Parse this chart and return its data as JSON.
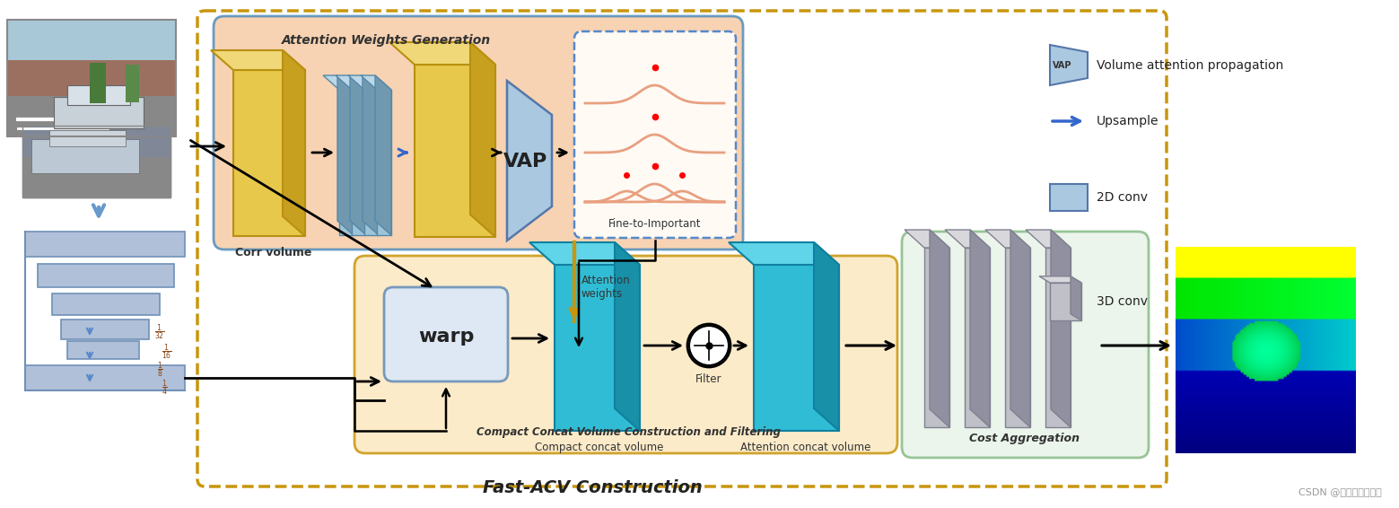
{
  "bg_color": "#ffffff",
  "title": "Fast-ACV Construction",
  "csdn_label": "CSDN @华科附小第一名",
  "legend_vap_label": "Volume attention propagation",
  "legend_upsample_label": "Upsample",
  "legend_2dconv_label": "2D conv",
  "legend_3dconv_label": "3D conv",
  "corr_volume_label": "Corr volume",
  "fine_to_important_label": "Fine-to-Important",
  "compact_concat_label": "Compact concat volume",
  "attention_concat_label": "Attention concat volume",
  "compact_filtering_label": "Compact Concat Volume Construction and Filtering",
  "warp_label": "warp",
  "filter_label": "Filter",
  "attention_weights_label": "Attention\nweights",
  "vap_label": "VAP",
  "cost_agg_label": "Cost Aggregation",
  "attn_gen_label": "Attention Weights Generation",
  "yellow_face": "#e8c84a",
  "yellow_top": "#f0d878",
  "yellow_side": "#c8a020",
  "yellow_edge": "#b89010",
  "cyan_face": "#30bcd4",
  "cyan_top": "#60d4e8",
  "cyan_side": "#1890a8",
  "cyan_edge": "#1080a0",
  "blue_slab_face": "#9fc4d8",
  "blue_slab_top": "#bcd8e8",
  "blue_slab_side": "#7099b0",
  "blue_slab_edge": "#5588aa",
  "gray_slab_face": "#c0c0c8",
  "gray_slab_top": "#d8d8dc",
  "gray_slab_side": "#9090a0",
  "gray_slab_edge": "#808090",
  "vap_face": "#aac8e0",
  "vap_edge": "#5577aa",
  "pyramid_color": "#b0c0d8",
  "pyramid_edge": "#7090b8",
  "outer_box_color": "#c8960c",
  "attn_box_color": "#f5c9a0",
  "attn_box_edge": "#4488bb",
  "compact_box_color": "#fce8c0",
  "compact_box_edge": "#c8960c",
  "cost_box_color": "#e8f4e8",
  "cost_box_edge": "#88bb88",
  "warp_face": "#dde8f4",
  "warp_edge": "#7799bb",
  "fine_face": "#fffaf4",
  "fine_edge": "#5588cc"
}
